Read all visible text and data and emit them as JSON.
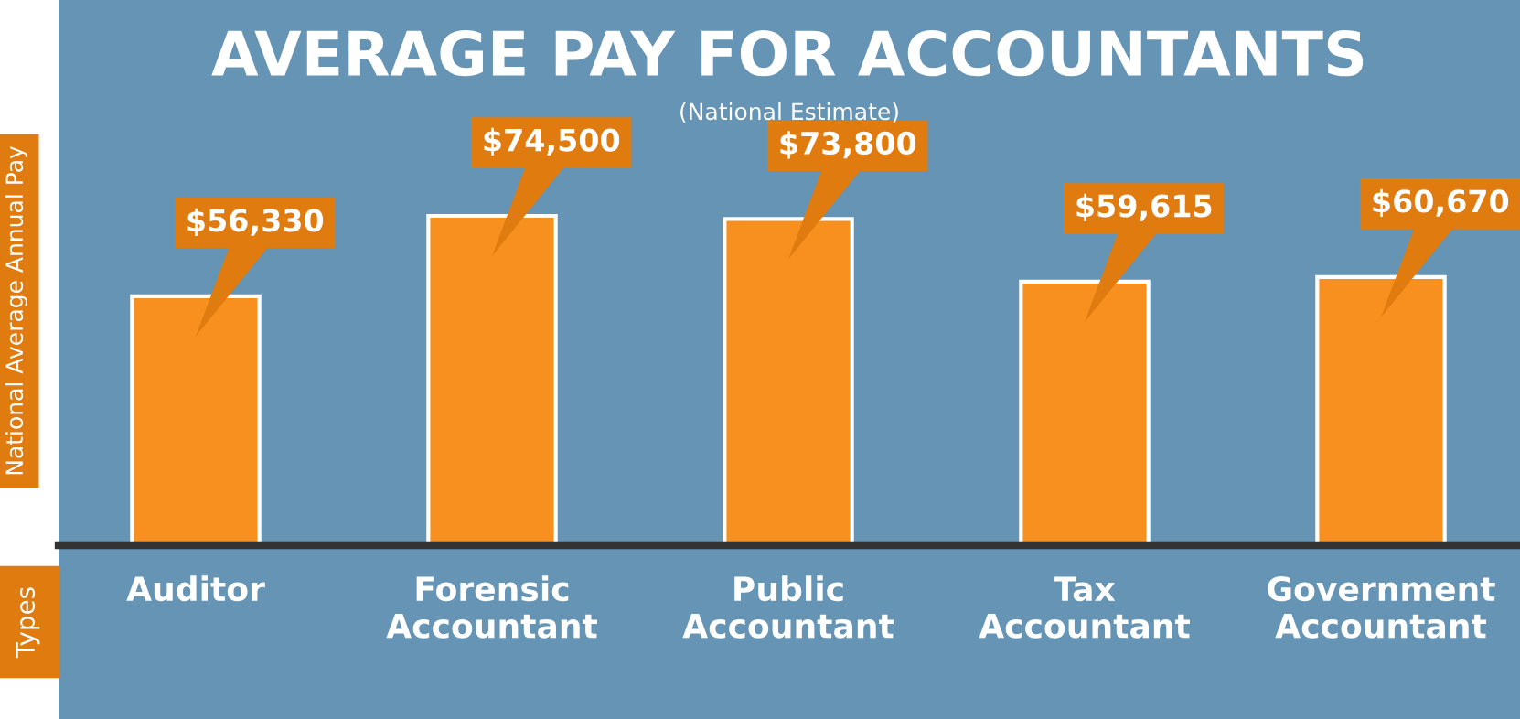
{
  "chart_data": {
    "type": "bar",
    "title": "AVERAGE PAY FOR ACCOUNTANTS",
    "subtitle": "(National Estimate)",
    "annotations": [
      "Types"
    ],
    "ylabel": "National Average Annual Pay",
    "categories": [
      "Auditor",
      "Forensic\nAccountant",
      "Public\nAccountant",
      "Tax\nAccountant",
      "Government\nAccountant"
    ],
    "values": [
      56330,
      74500,
      73800,
      59615,
      60670
    ],
    "value_labels": [
      "$56,330",
      "$74,500",
      "$73,800",
      "$59,615",
      "$60,670"
    ],
    "color": "#f7901e",
    "grid": false,
    "legend": false
  }
}
